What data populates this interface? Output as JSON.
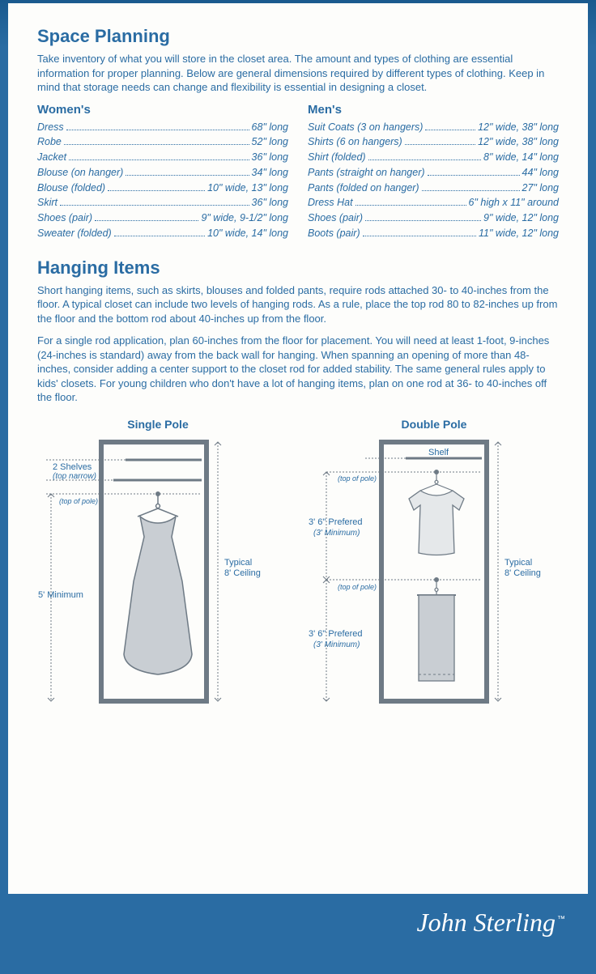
{
  "colors": {
    "primary": "#2a6ca3",
    "page_bg": "#fdfdfb",
    "diagram_stroke": "#6e7a85",
    "diagram_fill": "#c9ced3",
    "diagram_light": "#e5e8ea"
  },
  "space_planning": {
    "title": "Space Planning",
    "intro": "Take inventory of what you will store in the closet area. The amount and types of clothing are essential information for proper planning. Below are general dimensions required by different types of clothing. Keep in mind that storage needs can change and flexibility is essential in designing a closet.",
    "womens": {
      "heading": "Women's",
      "rows": [
        {
          "label": "Dress",
          "value": "68\" long"
        },
        {
          "label": "Robe",
          "value": "52\" long"
        },
        {
          "label": "Jacket",
          "value": "36\" long"
        },
        {
          "label": "Blouse (on hanger)",
          "value": "34\" long"
        },
        {
          "label": "Blouse (folded)",
          "value": "10\" wide, 13\" long"
        },
        {
          "label": "Skirt",
          "value": "36\" long"
        },
        {
          "label": "Shoes (pair)",
          "value": "9\" wide, 9-1/2\" long"
        },
        {
          "label": "Sweater (folded)",
          "value": "10\" wide, 14\" long"
        }
      ]
    },
    "mens": {
      "heading": "Men's",
      "rows": [
        {
          "label": "Suit Coats (3 on hangers)",
          "value": "12\" wide, 38\" long"
        },
        {
          "label": "Shirts (6 on hangers)",
          "value": "12\" wide, 38\" long"
        },
        {
          "label": "Shirt (folded)",
          "value": "8\" wide, 14\" long"
        },
        {
          "label": "Pants (straight on hanger)",
          "value": "44\" long"
        },
        {
          "label": "Pants (folded on hanger)",
          "value": "27\" long"
        },
        {
          "label": "Dress Hat",
          "value": "6\" high x 11\" around"
        },
        {
          "label": "Shoes (pair)",
          "value": "9\" wide, 12\" long"
        },
        {
          "label": "Boots (pair)",
          "value": "11\" wide, 12\" long"
        }
      ]
    }
  },
  "hanging_items": {
    "title": "Hanging Items",
    "para1": "Short hanging items, such as skirts, blouses and folded pants, require rods attached 30- to 40-inches from the floor. A typical closet can include two levels of hanging rods. As a rule, place the top rod 80 to 82-inches up from the floor and the bottom rod about 40-inches up from the floor.",
    "para2": "For a single rod application, plan 60-inches from the floor for placement. You will need at least 1-foot, 9-inches (24-inches is standard) away from the back wall for hanging. When spanning an opening of more than 48-inches, consider adding a center support to the closet rod for added stability. The same general rules apply to kids' closets. For young children who don't have a lot of hanging items, plan on one rod at 36- to 40-inches off the floor."
  },
  "diagrams": {
    "single": {
      "caption": "Single Pole",
      "labels": {
        "shelves": "2 Shelves",
        "shelves_note": "(top narrow)",
        "top_of_pole": "(top of pole)",
        "min_height": "5' Minimum",
        "ceiling": "Typical\n8' Ceiling"
      }
    },
    "double": {
      "caption": "Double Pole",
      "labels": {
        "shelf": "Shelf",
        "top_of_pole": "(top of pole)",
        "section_height": "3' 6\" Prefered",
        "section_min": "(3' Minimum)",
        "ceiling": "Typical\n8' Ceiling"
      }
    }
  },
  "footer": {
    "brand": "John Sterling",
    "tm": "™"
  }
}
